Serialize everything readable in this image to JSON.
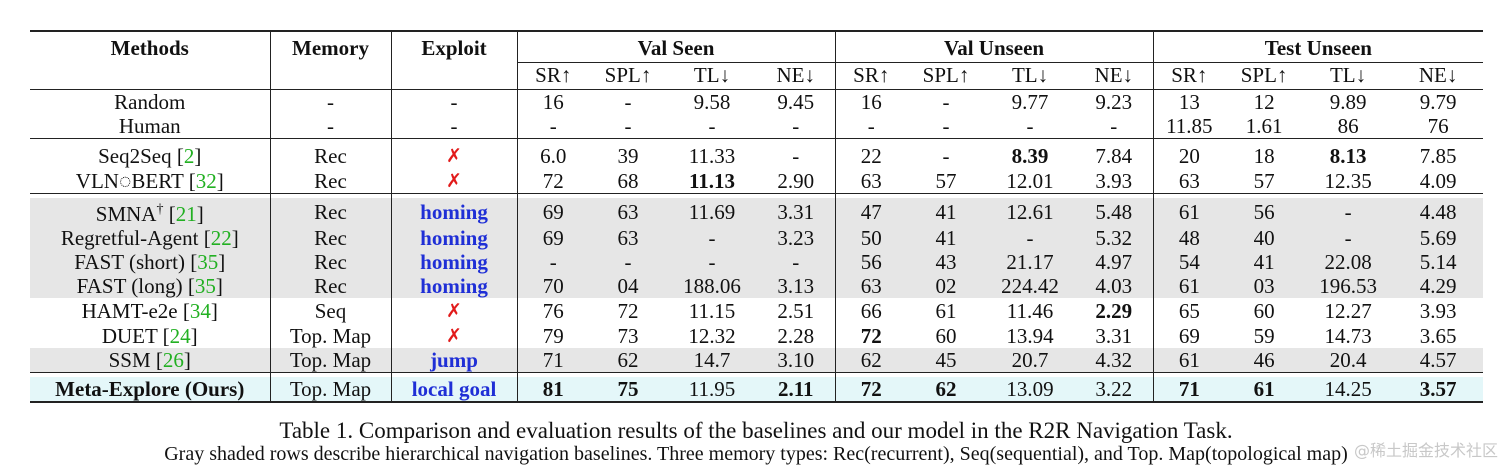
{
  "header": {
    "methods": "Methods",
    "memory": "Memory",
    "exploit": "Exploit",
    "groups": [
      "Val Seen",
      "Val Unseen",
      "Test Unseen"
    ],
    "metrics": [
      "SR↑",
      "SPL↑",
      "TL↓",
      "NE↓"
    ]
  },
  "rows": [
    {
      "name": "Random",
      "cite": "",
      "sup": "",
      "memory": "-",
      "exploit": "-",
      "exploit_type": "text",
      "vals": [
        "16",
        "-",
        "9.58",
        "9.45",
        "16",
        "-",
        "9.77",
        "9.23",
        "13",
        "12",
        "9.89",
        "9.79"
      ],
      "bold": [],
      "shade": false,
      "ours": false,
      "rule_before": false
    },
    {
      "name": "Human",
      "cite": "",
      "sup": "",
      "memory": "-",
      "exploit": "-",
      "exploit_type": "text",
      "vals": [
        "-",
        "-",
        "-",
        "-",
        "-",
        "-",
        "-",
        "-",
        "11.85",
        "1.61",
        "86",
        "76"
      ],
      "bold": [],
      "shade": false,
      "ours": false,
      "rule_before": false
    },
    {
      "name": "Seq2Seq",
      "cite": "2",
      "sup": "",
      "memory": "Rec",
      "exploit": "✗",
      "exploit_type": "cross",
      "vals": [
        "6.0",
        "39",
        "11.33",
        "-",
        "22",
        "-",
        "8.39",
        "7.84",
        "20",
        "18",
        "8.13",
        "7.85"
      ],
      "bold": [
        6,
        10
      ],
      "shade": false,
      "ours": false,
      "rule_before": true
    },
    {
      "name": "VLN◌BERT",
      "cite": "32",
      "sup": "",
      "memory": "Rec",
      "exploit": "✗",
      "exploit_type": "cross",
      "vals": [
        "72",
        "68",
        "11.13",
        "2.90",
        "63",
        "57",
        "12.01",
        "3.93",
        "63",
        "57",
        "12.35",
        "4.09"
      ],
      "bold": [
        2
      ],
      "shade": false,
      "ours": false,
      "rule_before": false
    },
    {
      "name": "SMNA",
      "cite": "21",
      "sup": "†",
      "memory": "Rec",
      "exploit": "homing",
      "exploit_type": "blue",
      "vals": [
        "69",
        "63",
        "11.69",
        "3.31",
        "47",
        "41",
        "12.61",
        "5.48",
        "61",
        "56",
        "-",
        "4.48"
      ],
      "bold": [],
      "shade": true,
      "ours": false,
      "rule_before": true
    },
    {
      "name": "Regretful-Agent",
      "cite": "22",
      "sup": "",
      "memory": "Rec",
      "exploit": "homing",
      "exploit_type": "blue",
      "vals": [
        "69",
        "63",
        "-",
        "3.23",
        "50",
        "41",
        "-",
        "5.32",
        "48",
        "40",
        "-",
        "5.69"
      ],
      "bold": [],
      "shade": true,
      "ours": false,
      "rule_before": false
    },
    {
      "name": "FAST (short)",
      "cite": "35",
      "sup": "",
      "memory": "Rec",
      "exploit": "homing",
      "exploit_type": "blue",
      "vals": [
        "-",
        "-",
        "-",
        "-",
        "56",
        "43",
        "21.17",
        "4.97",
        "54",
        "41",
        "22.08",
        "5.14"
      ],
      "bold": [],
      "shade": true,
      "ours": false,
      "rule_before": false
    },
    {
      "name": "FAST (long)",
      "cite": "35",
      "sup": "",
      "memory": "Rec",
      "exploit": "homing",
      "exploit_type": "blue",
      "vals": [
        "70",
        "04",
        "188.06",
        "3.13",
        "63",
        "02",
        "224.42",
        "4.03",
        "61",
        "03",
        "196.53",
        "4.29"
      ],
      "bold": [],
      "shade": true,
      "ours": false,
      "rule_before": false
    },
    {
      "name": "HAMT-e2e",
      "cite": "34",
      "sup": "",
      "memory": "Seq",
      "exploit": "✗",
      "exploit_type": "cross",
      "vals": [
        "76",
        "72",
        "11.15",
        "2.51",
        "66",
        "61",
        "11.46",
        "2.29",
        "65",
        "60",
        "12.27",
        "3.93"
      ],
      "bold": [
        7
      ],
      "shade": false,
      "ours": false,
      "rule_before": false
    },
    {
      "name": "DUET",
      "cite": "24",
      "sup": "",
      "memory": "Top. Map",
      "exploit": "✗",
      "exploit_type": "cross",
      "vals": [
        "79",
        "73",
        "12.32",
        "2.28",
        "72",
        "60",
        "13.94",
        "3.31",
        "69",
        "59",
        "14.73",
        "3.65"
      ],
      "bold": [
        4
      ],
      "shade": false,
      "ours": false,
      "rule_before": false
    },
    {
      "name": "SSM",
      "cite": "26",
      "sup": "",
      "memory": "Top. Map",
      "exploit": "jump",
      "exploit_type": "blue",
      "vals": [
        "71",
        "62",
        "14.7",
        "3.10",
        "62",
        "45",
        "20.7",
        "4.32",
        "61",
        "46",
        "20.4",
        "4.57"
      ],
      "bold": [],
      "shade": true,
      "ours": false,
      "rule_before": false
    },
    {
      "name": "Meta-Explore (Ours)",
      "cite": "",
      "sup": "",
      "memory": "Top. Map",
      "exploit": "local goal",
      "exploit_type": "blue",
      "vals": [
        "81",
        "75",
        "11.95",
        "2.11",
        "72",
        "62",
        "13.09",
        "3.22",
        "71",
        "61",
        "14.25",
        "3.57"
      ],
      "bold": [
        0,
        1,
        3,
        4,
        5,
        8,
        9,
        11
      ],
      "shade": false,
      "ours": true,
      "rule_before": true
    }
  ],
  "caption": "Table 1. Comparison and evaluation results of the baselines and our model in the R2R Navigation Task.",
  "subcaption": "Gray shaded rows describe hierarchical navigation baselines. Three memory types: Rec(recurrent), Seq(sequential), and Top. Map(topological map)",
  "watermark": "@稀土掘金技术社区"
}
